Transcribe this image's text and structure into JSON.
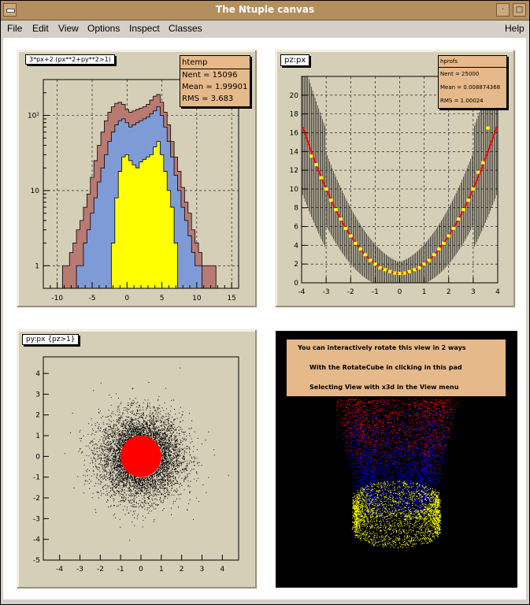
{
  "window": {
    "title": "The Ntuple canvas",
    "minimize_glyph": "·",
    "maximize_glyph": "□"
  },
  "menu": {
    "file": "File",
    "edit": "Edit",
    "view": "View",
    "options": "Options",
    "inspect": "Inspect",
    "classes": "Classes",
    "help": "Help"
  },
  "pad1": {
    "label": "3*px+2 (px**2+py**2>1)",
    "stats": {
      "name": "htemp",
      "nent": "Nent  = 15096",
      "mean": "Mean  = 1.99901",
      "rms": "RMS   =  3.683"
    },
    "chart_data": {
      "type": "histogram",
      "log_y": true,
      "xlim": [
        -12,
        16
      ],
      "ylim": [
        0.5,
        300
      ],
      "x_ticks": [
        "-10",
        "-5",
        "0",
        "5",
        "10",
        "15"
      ],
      "y_ticks": [
        "1",
        "10",
        "10²"
      ],
      "grid": true,
      "colors": {
        "outer": "#b87a72",
        "middle": "#7f9bd6",
        "inner": "#ffff00"
      },
      "series": [
        {
          "x": [
            -9,
            -8.5,
            -8,
            -7.5,
            -7,
            -6.5,
            -6,
            -5.5,
            -5,
            -4.5,
            -4,
            -3.5,
            -3,
            -2.5,
            -2,
            -1.5,
            -1,
            -0.5,
            0,
            0.5,
            1,
            1.5,
            2,
            2.5,
            3,
            3.5,
            4,
            4.5,
            5,
            5.5,
            6,
            6.5,
            7,
            7.5,
            8,
            8.5,
            9,
            9.5,
            10,
            10.5,
            11,
            11.5,
            12,
            12.5,
            13
          ],
          "values": [
            1,
            1,
            1.5,
            2,
            3,
            4,
            6,
            9,
            15,
            25,
            40,
            60,
            85,
            110,
            130,
            145,
            150,
            140,
            120,
            110,
            115,
            120,
            125,
            130,
            140,
            160,
            180,
            190,
            150,
            110,
            75,
            45,
            28,
            18,
            11,
            7,
            5,
            3,
            2,
            1.5,
            1,
            1,
            1,
            1,
            0.5
          ]
        },
        {
          "x": [
            -7,
            -6.5,
            -6,
            -5.5,
            -5,
            -4.5,
            -4,
            -3.5,
            -3,
            -2.5,
            -2,
            -1.5,
            -1,
            -0.5,
            0,
            0.5,
            1,
            1.5,
            2,
            2.5,
            3,
            3.5,
            4,
            4.5,
            5,
            5.5,
            6,
            6.5,
            7,
            7.5,
            8,
            8.5,
            9,
            9.5,
            10,
            10.5,
            11
          ],
          "values": [
            1,
            1,
            2,
            3,
            5,
            8,
            13,
            20,
            30,
            45,
            60,
            75,
            85,
            90,
            80,
            70,
            75,
            80,
            85,
            90,
            95,
            105,
            115,
            130,
            100,
            70,
            45,
            28,
            16,
            10,
            6,
            4,
            2.5,
            1.5,
            1,
            1,
            0.5
          ]
        },
        {
          "x": [
            -2,
            -1.5,
            -1,
            -0.5,
            0,
            0.5,
            1,
            1.5,
            2,
            2.5,
            3,
            3.5,
            4,
            4.5,
            5,
            5.5,
            6,
            6.5,
            7
          ],
          "values": [
            2,
            8,
            18,
            28,
            30,
            25,
            22,
            20,
            24,
            26,
            28,
            30,
            38,
            45,
            30,
            18,
            10,
            6,
            2
          ]
        }
      ]
    }
  },
  "pad2": {
    "label": "pz:px",
    "stats": {
      "name": "hprofs",
      "nent": "Nent = 25000",
      "mean": "Mean = 0.008874368",
      "rms": "RMS  = 1.00024"
    },
    "chart_data": {
      "type": "scatter",
      "xlim": [
        -4,
        4
      ],
      "ylim": [
        0,
        22
      ],
      "x_ticks": [
        "-4",
        "-3",
        "-2",
        "-1",
        "0",
        "1",
        "2",
        "3",
        "4"
      ],
      "y_ticks": [
        "0",
        "2",
        "4",
        "6",
        "8",
        "10",
        "12",
        "14",
        "16",
        "18",
        "20"
      ],
      "grid": true,
      "fit": "pz = 1 + px^2",
      "colors": {
        "fit": "#ff0000",
        "points": "#ffff00",
        "errors": "#000000"
      },
      "profile_x": [
        -3.6,
        -3.4,
        -3.2,
        -3.0,
        -2.8,
        -2.6,
        -2.4,
        -2.2,
        -2.0,
        -1.8,
        -1.6,
        -1.4,
        -1.2,
        -1.0,
        -0.8,
        -0.6,
        -0.4,
        -0.2,
        0,
        0.2,
        0.4,
        0.6,
        0.8,
        1.0,
        1.2,
        1.4,
        1.6,
        1.8,
        2.0,
        2.2,
        2.4,
        2.6,
        2.8,
        3.0,
        3.2,
        3.4,
        3.6
      ],
      "profile_y": [
        13.5,
        12.6,
        11.2,
        10.0,
        8.8,
        7.8,
        6.8,
        5.8,
        5.0,
        4.2,
        3.6,
        3.0,
        2.4,
        2.0,
        1.6,
        1.4,
        1.2,
        1.04,
        1.0,
        1.04,
        1.2,
        1.4,
        1.6,
        2.0,
        2.4,
        3.0,
        3.6,
        4.2,
        5.0,
        5.8,
        6.8,
        7.8,
        8.8,
        10.0,
        11.8,
        12.8,
        16.5
      ]
    }
  },
  "pad3": {
    "label": "py:px {pz>1}",
    "chart_data": {
      "type": "scatter",
      "xlim": [
        -4.8,
        4.8
      ],
      "ylim": [
        -5,
        4.8
      ],
      "x_ticks": [
        "-4",
        "-3",
        "-2",
        "-1",
        "0",
        "1",
        "2",
        "3",
        "4"
      ],
      "y_ticks": [
        "-5",
        "-4",
        "-3",
        "-2",
        "-1",
        "0",
        "1",
        "2",
        "3",
        "4"
      ],
      "grid": false,
      "distribution": "gaussian, sigma 1, excluding px^2+py^2 < 1",
      "colors": {
        "points": "#000000",
        "disc": "#ff0000"
      },
      "n_points": 15096,
      "disc_center": [
        0,
        0
      ],
      "disc_radius": 1
    }
  },
  "pad4": {
    "lines": [
      "You can interactively rotate this view in 2 ways",
      "With the RotateCube in clicking in this pad",
      "Selecting View with x3d in the View menu"
    ],
    "chart_data": {
      "type": "scatter3d",
      "view": "x3d",
      "colors": {
        "background": "#000000",
        "upper": "#ff0000",
        "middle": "#0000ff",
        "bottom_ring": "#ffff00"
      }
    }
  }
}
